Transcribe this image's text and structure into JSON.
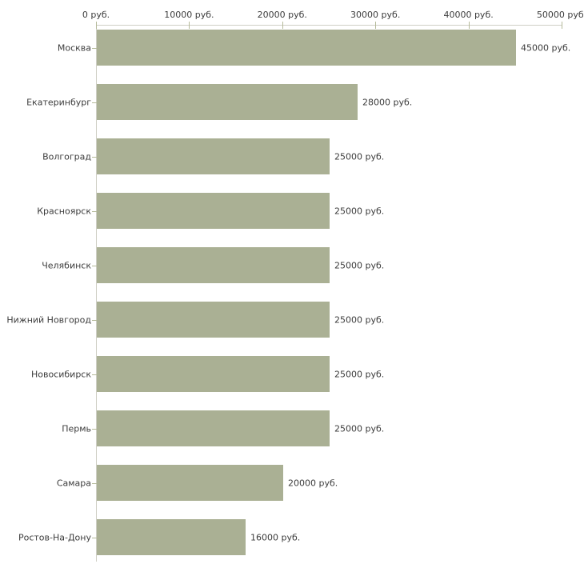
{
  "chart_data": {
    "type": "bar",
    "orientation": "horizontal",
    "title": "",
    "xlabel": "",
    "ylabel": "",
    "unit": "руб.",
    "categories": [
      "Москва",
      "Екатеринбург",
      "Волгоград",
      "Красноярск",
      "Челябинск",
      "Нижний Новгород",
      "Новосибирск",
      "Пермь",
      "Самара",
      "Ростов-На-Дону"
    ],
    "values": [
      45000,
      28000,
      25000,
      25000,
      25000,
      25000,
      25000,
      25000,
      20000,
      16000
    ],
    "value_labels": [
      "45000 руб.",
      "28000 руб.",
      "25000 руб.",
      "25000 руб.",
      "25000 руб.",
      "25000 руб.",
      "25000 руб.",
      "25000 руб.",
      "20000 руб.",
      "16000 руб."
    ],
    "x_axis": {
      "position": "top",
      "min": 0,
      "max": 50000,
      "ticks": [
        0,
        10000,
        20000,
        30000,
        40000,
        50000
      ],
      "tick_labels": [
        "0 руб.",
        "10000 руб.",
        "20000 руб.",
        "30000 руб.",
        "40000 руб.",
        "50000 руб."
      ]
    },
    "legend": null,
    "grid": false,
    "colors": {
      "bar": "#aab094",
      "axis_line": "#cfcfc5",
      "tick_mark": "#b5ba9a",
      "text": "#3c3c3c",
      "background": "#ffffff"
    }
  }
}
